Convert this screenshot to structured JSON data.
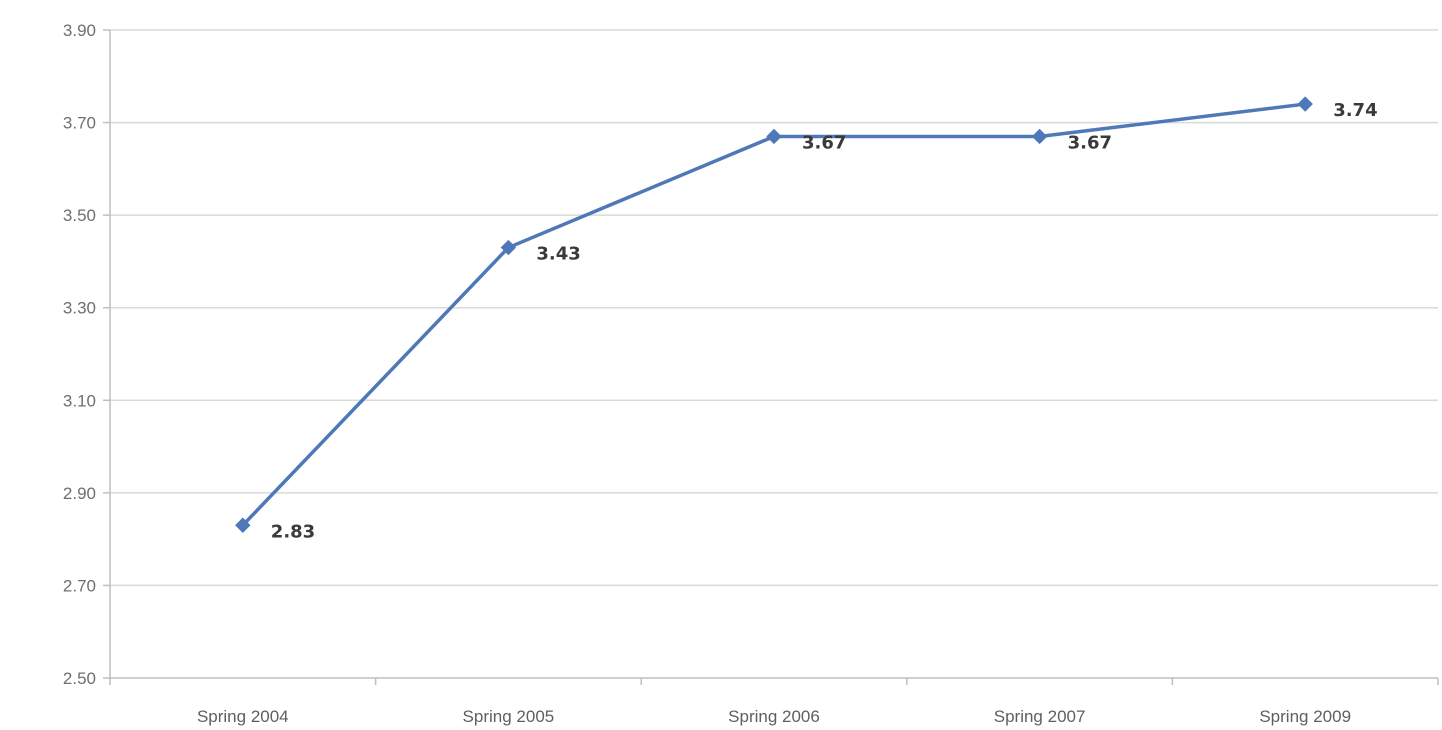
{
  "chart_data": {
    "type": "line",
    "title": "",
    "xlabel": "",
    "ylabel": "",
    "categories": [
      "Spring 2004",
      "Spring 2005",
      "Spring 2006",
      "Spring 2007",
      "Spring 2009"
    ],
    "series": [
      {
        "color": "#4f78b8",
        "marker": "diamond",
        "values": [
          2.83,
          3.43,
          3.67,
          3.67,
          3.74
        ],
        "labels": [
          "2.83",
          "3.43",
          "3.67",
          "3.67",
          "3.74"
        ]
      }
    ],
    "ylim": [
      2.5,
      3.9
    ],
    "yticks": [
      2.5,
      2.7,
      2.9,
      3.1,
      3.3,
      3.5,
      3.7,
      3.9
    ],
    "ytick_labels": [
      "2.50",
      "2.70",
      "2.90",
      "3.10",
      "3.30",
      "3.50",
      "3.70",
      "3.90"
    ],
    "grid": true,
    "gridline_color": "#d9d9d9",
    "axis_color": "#bfbfbf",
    "legend": "none"
  }
}
